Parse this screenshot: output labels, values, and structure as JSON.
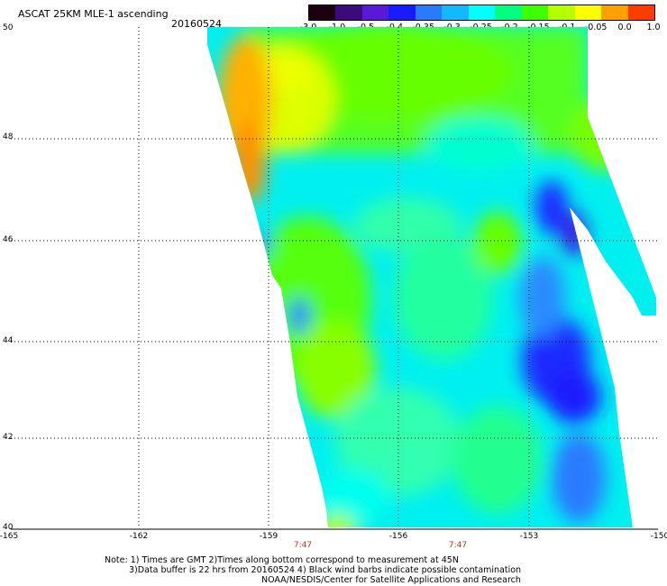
{
  "header": {
    "title": "ASCAT 25KM MLE-1 ascending",
    "date": "20160524"
  },
  "colorbar": {
    "labels": [
      "-3.0",
      "-1.0",
      "-0.5",
      "-0.4",
      "-0.35",
      "-0.3",
      "-0.25",
      "-0.2",
      "-0.15",
      "-0.1",
      "-0.05",
      "0.0",
      "1.0"
    ],
    "colors": [
      "#1a0010",
      "#3c0a7a",
      "#5a18d8",
      "#1a1aff",
      "#2a7aff",
      "#14b8ff",
      "#00ffff",
      "#00ff80",
      "#3cff00",
      "#b4ff00",
      "#ffff00",
      "#ffa000",
      "#ff3c00"
    ]
  },
  "map": {
    "lon_labels": [
      "-165",
      "-162",
      "-159",
      "-156",
      "-153",
      "-150"
    ],
    "lat_labels": [
      "50",
      "48",
      "46",
      "44",
      "42",
      "40"
    ],
    "lon_range": [
      -165,
      -150
    ],
    "lat_range": [
      40,
      50
    ],
    "grid": "dotted",
    "time_labels": [
      {
        "text": "7:47",
        "lon": -158.3
      },
      {
        "text": "7:47",
        "lon": -154.7
      }
    ]
  },
  "notes": {
    "line1": "Note: 1) Times are GMT 2)Times along bottom correspond to measurement at 45N",
    "line2": "3)Data buffer is 22 hrs from 20160524 4) Black wind barbs indicate possible contamination",
    "line3": "NOAA/NESDIS/Center for Satellite Applications and Research"
  }
}
